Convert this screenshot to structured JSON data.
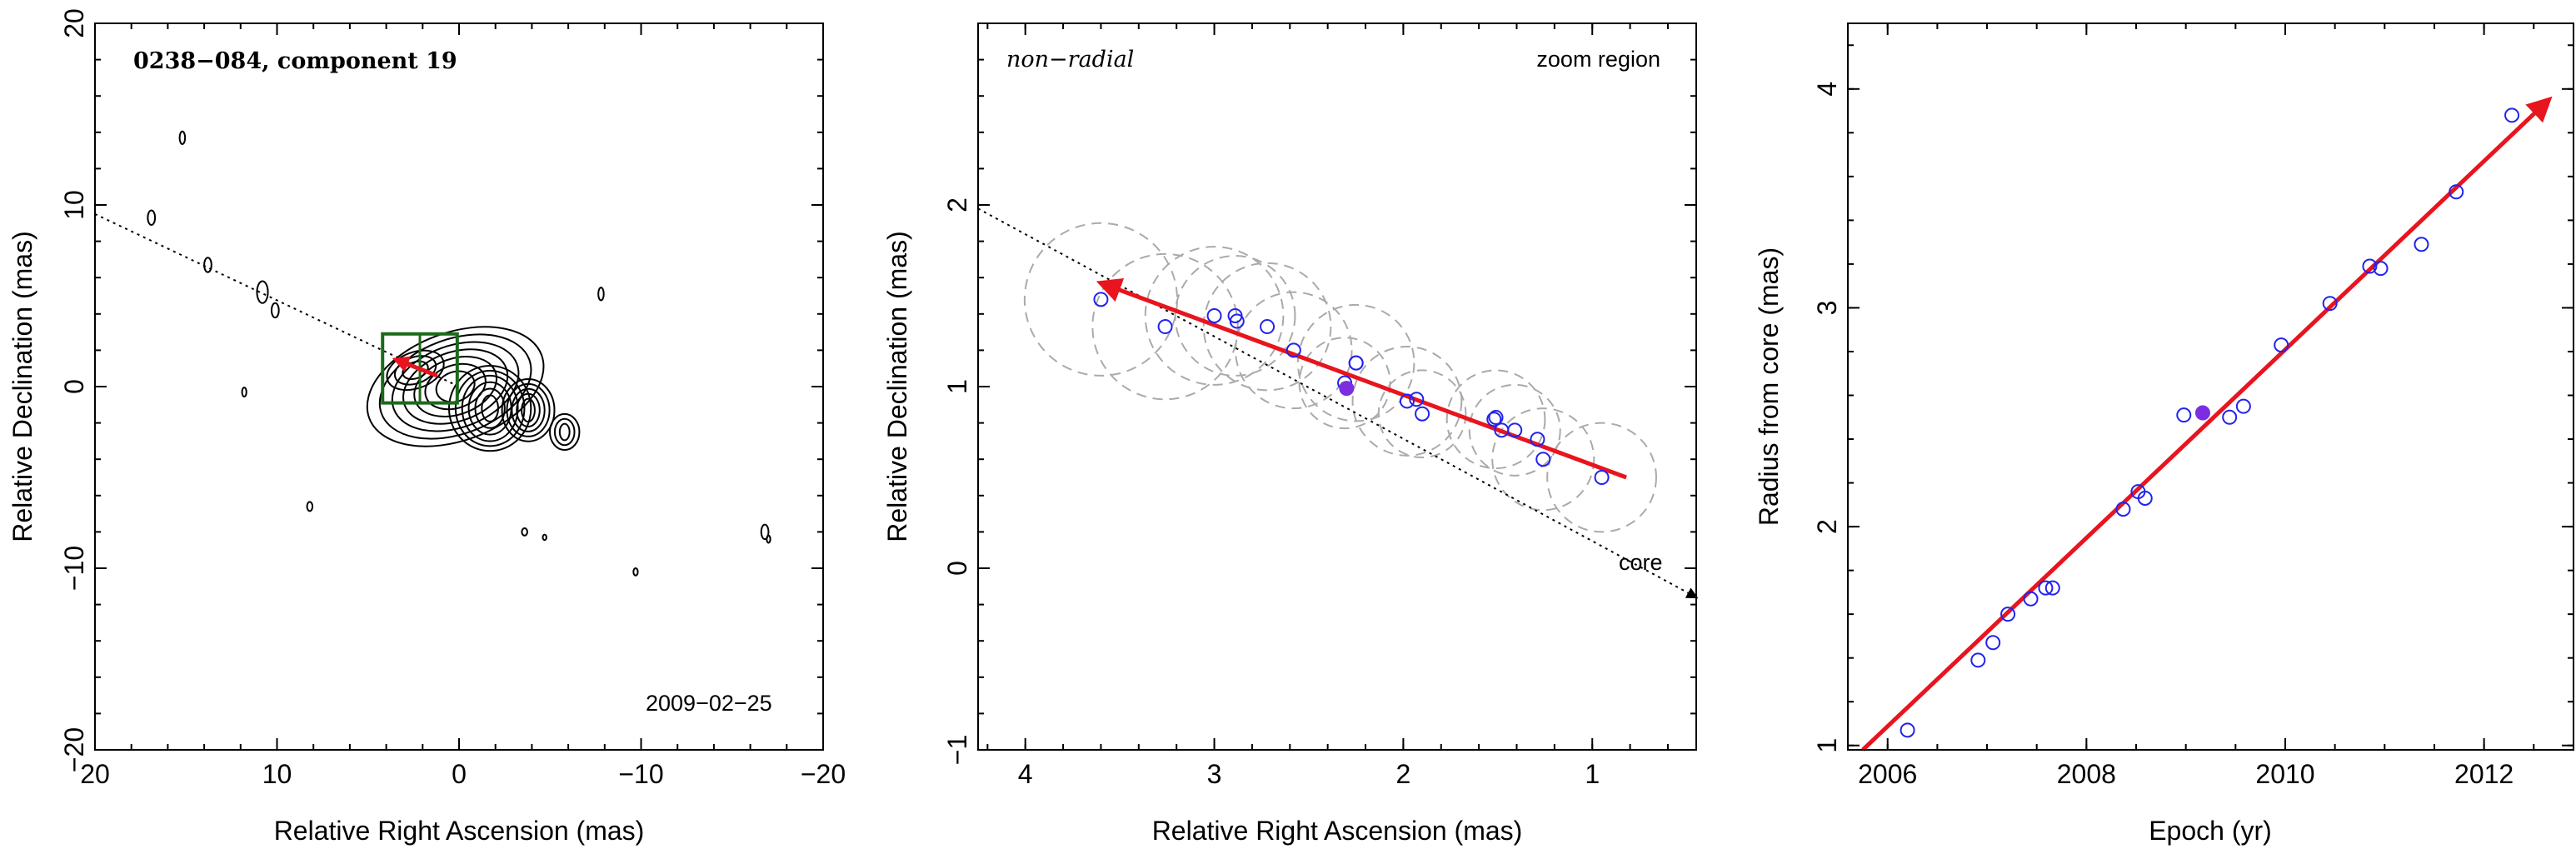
{
  "chart_data": [
    {
      "type": "scatter",
      "panel": "map",
      "title": "0238−084, component 19",
      "epoch_label": "2009−02−25",
      "xlabel": "Relative Right Ascension (mas)",
      "ylabel": "Relative Declination (mas)",
      "xlim": [
        20,
        -20
      ],
      "ylim": [
        -20,
        20
      ],
      "x_ticks": [
        20,
        10,
        0,
        -10,
        -20
      ],
      "x_tick_labels": [
        "20",
        "10",
        "0",
        "−10",
        "−20"
      ],
      "y_ticks": [
        -20,
        -10,
        0,
        10,
        20
      ],
      "y_tick_labels": [
        "−20",
        "−10",
        "0",
        "10",
        "20"
      ],
      "jet_axis_line": {
        "x": [
          20,
          0
        ],
        "y": [
          9.5,
          0
        ]
      },
      "zoom_box": {
        "x": [
          4.2,
          0.1
        ],
        "y": [
          -0.9,
          2.9
        ]
      },
      "component_vector": {
        "x": [
          3.5,
          1.2
        ],
        "y": [
          1.5,
          0.6
        ]
      },
      "line_colors": {
        "contour": "#000000",
        "zoom_box": "#1a6b1a",
        "vector": "#e8141e"
      }
    },
    {
      "type": "scatter",
      "panel": "zoom",
      "label_left": "non−radial",
      "label_right": "zoom region",
      "core_label": "core",
      "xlabel": "Relative Right Ascension (mas)",
      "ylabel": "Relative Declination (mas)",
      "xlim": [
        4.25,
        0.45
      ],
      "ylim": [
        -1,
        3
      ],
      "x_ticks": [
        4,
        3,
        2,
        1
      ],
      "x_tick_labels": [
        "4",
        "3",
        "2",
        "1"
      ],
      "y_ticks": [
        -1,
        0,
        1,
        2
      ],
      "y_tick_labels": [
        "−1",
        "0",
        "1",
        "2"
      ],
      "jet_axis_line": {
        "x": [
          4.25,
          0.45
        ],
        "y": [
          1.98,
          -0.16
        ]
      },
      "velocity_vector": {
        "x": [
          0.82,
          3.6
        ],
        "y": [
          0.5,
          1.57
        ]
      },
      "series": [
        {
          "marker": "open-circle",
          "x": [
            3.6,
            3.26,
            3.0,
            2.89,
            2.88,
            2.72,
            2.58,
            2.31,
            2.25,
            2.25,
            1.98,
            1.93,
            1.9,
            1.52,
            1.51,
            1.48,
            1.41,
            1.29,
            1.26,
            0.95
          ],
          "y": [
            1.48,
            1.33,
            1.39,
            1.39,
            1.36,
            1.33,
            1.2,
            1.02,
            1.13,
            1.13,
            0.92,
            0.93,
            0.85,
            0.82,
            0.83,
            0.76,
            0.76,
            0.71,
            0.6,
            0.5
          ],
          "color": "#2222ee"
        },
        {
          "marker": "filled-circle",
          "x": [
            2.3
          ],
          "y": [
            0.99
          ],
          "color": "#7b2ee0"
        }
      ],
      "beam_circles": {
        "x": [
          3.6,
          3.26,
          3.0,
          2.89,
          2.72,
          2.58,
          2.31,
          2.25,
          1.98,
          1.9,
          1.51,
          1.41,
          1.26,
          0.95
        ],
        "y": [
          1.48,
          1.33,
          1.39,
          1.39,
          1.33,
          1.2,
          1.02,
          1.13,
          0.92,
          0.85,
          0.82,
          0.76,
          0.6,
          0.5
        ],
        "r": [
          0.42,
          0.4,
          0.38,
          0.33,
          0.35,
          0.32,
          0.25,
          0.32,
          0.3,
          0.24,
          0.27,
          0.25,
          0.28,
          0.3
        ],
        "color": "#aaaaaa"
      },
      "colors": {
        "vector": "#e8141e"
      }
    },
    {
      "type": "scatter",
      "panel": "radius",
      "xlabel": "Epoch (yr)",
      "ylabel": "Radius from core (mas)",
      "xlim": [
        2005.6,
        2012.9
      ],
      "ylim": [
        0.98,
        4.3
      ],
      "x_ticks": [
        2006,
        2008,
        2010,
        2012
      ],
      "x_tick_labels": [
        "2006",
        "2008",
        "2010",
        "2012"
      ],
      "y_ticks": [
        1,
        2,
        3,
        4
      ],
      "y_tick_labels": [
        "1",
        "2",
        "3",
        "4"
      ],
      "fit_line": {
        "x": [
          2005.75,
          2012.65
        ],
        "y": [
          0.98,
          3.95
        ]
      },
      "series": [
        {
          "marker": "open-circle",
          "x": [
            2006.2,
            2006.91,
            2007.06,
            2007.21,
            2007.44,
            2007.59,
            2007.66,
            2008.37,
            2008.52,
            2008.59,
            2008.98,
            2009.44,
            2009.58,
            2009.96,
            2010.45,
            2010.85,
            2010.96,
            2011.37,
            2011.72,
            2012.28
          ],
          "y": [
            1.07,
            1.39,
            1.47,
            1.6,
            1.67,
            1.72,
            1.72,
            2.08,
            2.16,
            2.13,
            2.51,
            2.5,
            2.55,
            2.83,
            3.02,
            3.19,
            3.18,
            3.29,
            3.53,
            3.88
          ],
          "color": "#2222ee"
        },
        {
          "marker": "filled-circle",
          "x": [
            2009.17
          ],
          "y": [
            2.52
          ],
          "color": "#7b2ee0"
        }
      ],
      "colors": {
        "fit": "#e8141e"
      }
    }
  ]
}
